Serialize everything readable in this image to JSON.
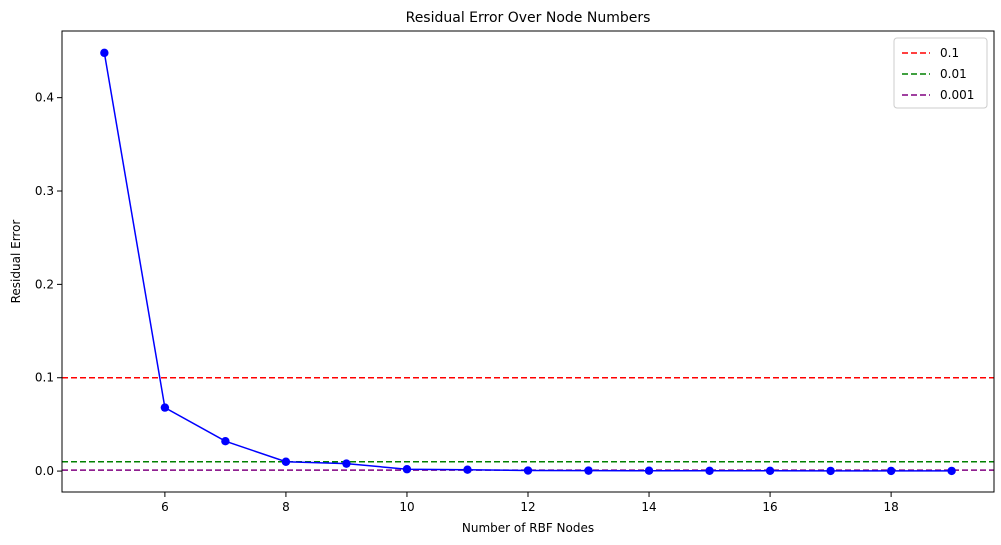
{
  "chart_data": {
    "type": "line",
    "title": "Residual Error Over Node Numbers",
    "xlabel": "Number of RBF Nodes",
    "ylabel": "Residual Error",
    "xlim": [
      4.3,
      19.7
    ],
    "ylim": [
      -0.0224,
      0.4714
    ],
    "x_ticks": [
      6,
      8,
      10,
      12,
      14,
      16,
      18
    ],
    "y_ticks": [
      0.0,
      0.1,
      0.2,
      0.3,
      0.4
    ],
    "x_tick_labels": [
      "6",
      "8",
      "10",
      "12",
      "14",
      "16",
      "18"
    ],
    "y_tick_labels": [
      "0.0",
      "0.1",
      "0.2",
      "0.3",
      "0.4"
    ],
    "grid": false,
    "legend_position": "top-right",
    "series": [
      {
        "color": "#0000ff",
        "marker": "circle",
        "x": [
          5,
          6,
          7,
          8,
          9,
          10,
          11,
          12,
          13,
          14,
          15,
          16,
          17,
          18,
          19
        ],
        "y": [
          0.448,
          0.068,
          0.032,
          0.01,
          0.008,
          0.002,
          0.0015,
          0.0006,
          0.0005,
          0.0004,
          0.0003,
          0.0003,
          0.0002,
          0.0002,
          0.0002
        ]
      }
    ],
    "hlines": [
      {
        "name": "0.1",
        "y": 0.1,
        "color": "#ff0000",
        "style": "dashed"
      },
      {
        "name": "0.01",
        "y": 0.01,
        "color": "#008000",
        "style": "dashed"
      },
      {
        "name": "0.001",
        "y": 0.001,
        "color": "#800080",
        "style": "dashed"
      }
    ]
  }
}
